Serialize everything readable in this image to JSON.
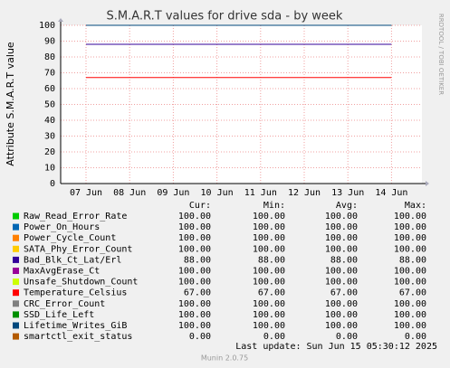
{
  "chart_data": {
    "type": "line",
    "title": "S.M.A.R.T values for drive sda - by week",
    "ylabel": "Attribute S.M.A.R.T value",
    "watermark": "RRDTOOL / TOBI OETIKER",
    "categories": [
      "07 Jun",
      "08 Jun",
      "09 Jun",
      "10 Jun",
      "11 Jun",
      "12 Jun",
      "13 Jun",
      "14 Jun"
    ],
    "ylim": [
      0,
      100
    ],
    "yticks": [
      0,
      10,
      20,
      30,
      40,
      50,
      60,
      70,
      80,
      90,
      100
    ],
    "grid": true,
    "columns": [
      "Cur:",
      "Min:",
      "Avg:",
      "Max:"
    ],
    "series": [
      {
        "name": "Raw_Read_Error_Rate",
        "color": "#00cc00",
        "values": [
          100,
          100,
          100,
          100,
          100,
          100,
          100,
          100
        ],
        "cur": "100.00",
        "min": "100.00",
        "avg": "100.00",
        "max": "100.00"
      },
      {
        "name": "Power_On_Hours",
        "color": "#0066b3",
        "values": [
          100,
          100,
          100,
          100,
          100,
          100,
          100,
          100
        ],
        "cur": "100.00",
        "min": "100.00",
        "avg": "100.00",
        "max": "100.00"
      },
      {
        "name": "Power_Cycle_Count",
        "color": "#ff8000",
        "values": [
          100,
          100,
          100,
          100,
          100,
          100,
          100,
          100
        ],
        "cur": "100.00",
        "min": "100.00",
        "avg": "100.00",
        "max": "100.00"
      },
      {
        "name": "SATA_Phy_Error_Count",
        "color": "#ffcc00",
        "values": [
          100,
          100,
          100,
          100,
          100,
          100,
          100,
          100
        ],
        "cur": "100.00",
        "min": "100.00",
        "avg": "100.00",
        "max": "100.00"
      },
      {
        "name": "Bad_Blk_Ct_Lat/Erl",
        "color": "#330099",
        "values": [
          88,
          88,
          88,
          88,
          88,
          88,
          88,
          88
        ],
        "cur": "88.00",
        "min": "88.00",
        "avg": "88.00",
        "max": "88.00"
      },
      {
        "name": "MaxAvgErase_Ct",
        "color": "#990099",
        "values": [
          100,
          100,
          100,
          100,
          100,
          100,
          100,
          100
        ],
        "cur": "100.00",
        "min": "100.00",
        "avg": "100.00",
        "max": "100.00"
      },
      {
        "name": "Unsafe_Shutdown_Count",
        "color": "#ccff00",
        "values": [
          100,
          100,
          100,
          100,
          100,
          100,
          100,
          100
        ],
        "cur": "100.00",
        "min": "100.00",
        "avg": "100.00",
        "max": "100.00"
      },
      {
        "name": "Temperature_Celsius",
        "color": "#ff0000",
        "values": [
          67,
          67,
          67,
          67,
          67,
          67,
          67,
          67
        ],
        "cur": "67.00",
        "min": "67.00",
        "avg": "67.00",
        "max": "67.00"
      },
      {
        "name": "CRC_Error_Count",
        "color": "#808080",
        "values": [
          100,
          100,
          100,
          100,
          100,
          100,
          100,
          100
        ],
        "cur": "100.00",
        "min": "100.00",
        "avg": "100.00",
        "max": "100.00"
      },
      {
        "name": "SSD_Life_Left",
        "color": "#008f00",
        "values": [
          100,
          100,
          100,
          100,
          100,
          100,
          100,
          100
        ],
        "cur": "100.00",
        "min": "100.00",
        "avg": "100.00",
        "max": "100.00"
      },
      {
        "name": "Lifetime_Writes_GiB",
        "color": "#00487d",
        "values": [
          100,
          100,
          100,
          100,
          100,
          100,
          100,
          100
        ],
        "cur": "100.00",
        "min": "100.00",
        "avg": "100.00",
        "max": "100.00"
      },
      {
        "name": "smartctl_exit_status",
        "color": "#b35a00",
        "values": [
          0,
          0,
          0,
          0,
          0,
          0,
          0,
          0
        ],
        "cur": "0.00",
        "min": "0.00",
        "avg": "0.00",
        "max": "0.00"
      }
    ],
    "last_update": "Last update: Sun Jun 15 05:30:12 2025",
    "footer": "Munin 2.0.75"
  }
}
